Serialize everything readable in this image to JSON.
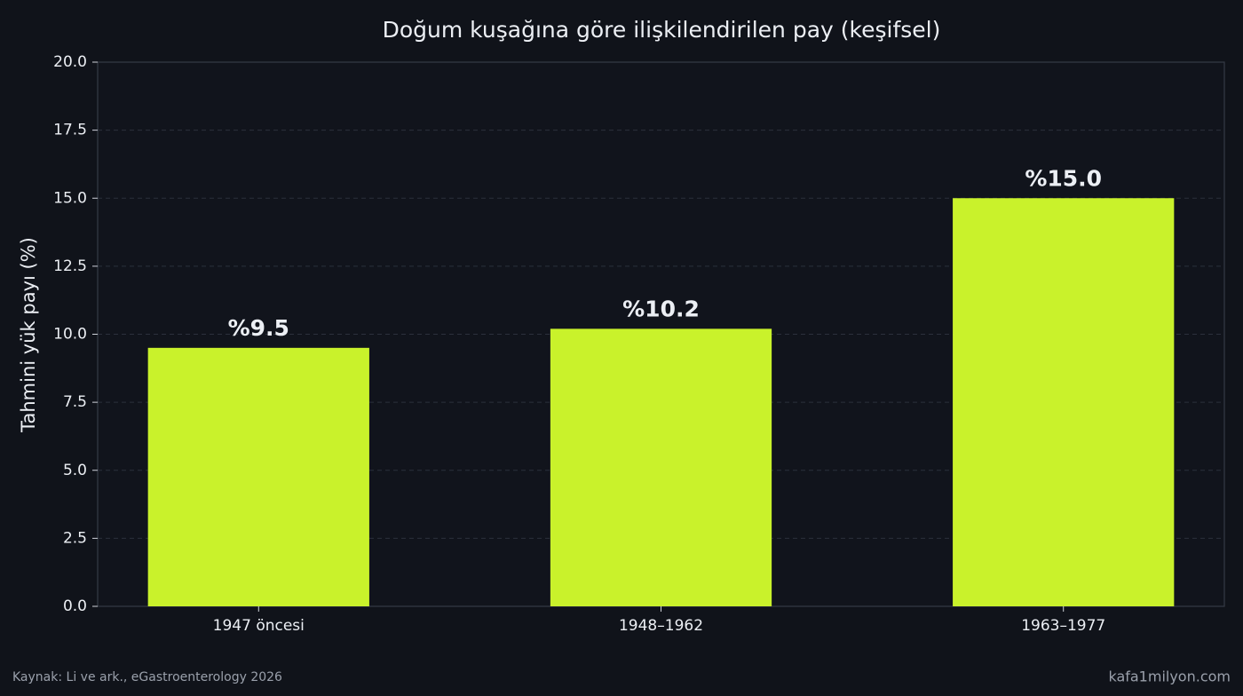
{
  "chart_data": {
    "type": "bar",
    "title": "Doğum kuşağına göre ilişkilendirilen pay (keşifsel)",
    "y_label": "Tahmini yük payı (%)",
    "categories": [
      "1947 öncesi",
      "1948–1962",
      "1963–1977"
    ],
    "values": [
      9.5,
      10.2,
      15.0
    ],
    "value_labels": [
      "%9.5",
      "%10.2",
      "%15.0"
    ],
    "color": "#c9f22b",
    "ylim": [
      0,
      20
    ],
    "yticks": [
      {
        "value": 0,
        "label": "0.0"
      },
      2.5,
      {
        "value": 5,
        "label": "5.0"
      },
      7.5,
      {
        "value": 10,
        "label": "10.0"
      },
      12.5,
      {
        "value": 15,
        "label": "15.0"
      },
      17.5,
      {
        "value": 20,
        "label": "20.0"
      }
    ],
    "grid": true,
    "source": "Kaynak: Li ve ark., eGastroenterology 2026",
    "credit": "kafa1milyon.com"
  }
}
